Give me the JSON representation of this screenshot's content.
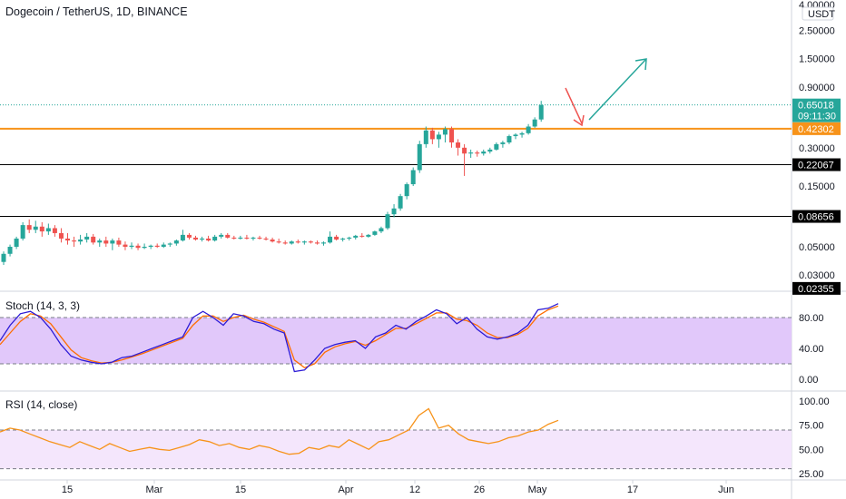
{
  "header": {
    "symbol_title": "Dogecoin / TetherUS, 1D, BINANCE",
    "currency_label": "USDT"
  },
  "colors": {
    "up": "#26a69a",
    "down": "#ef5350",
    "support_orange": "#f7931a",
    "support_black": "#000000",
    "stoch_k": "#2d1bd6",
    "stoch_d": "#ff6d00",
    "rsi": "#f7931a",
    "stoch_band": "#e1c8fa",
    "rsi_band": "#f4e6fc",
    "arrow_red": "#ef5350",
    "arrow_green": "#26a69a"
  },
  "price_axis": {
    "scale": "log",
    "ticks": [
      "4.00000",
      "2.50000",
      "1.50000",
      "0.90000",
      "0.30000",
      "0.15000",
      "0.05000",
      "0.03000"
    ]
  },
  "price_badges": [
    {
      "text": "0.65018",
      "sub": "09:11:30",
      "kind": "last"
    },
    {
      "text": "0.42302",
      "kind": "orange"
    },
    {
      "text": "0.22067",
      "kind": "black"
    },
    {
      "text": "0.08656",
      "kind": "black"
    },
    {
      "text": "0.02355",
      "kind": "black"
    }
  ],
  "time_axis": {
    "labels": [
      "15",
      "Mar",
      "15",
      "Apr",
      "12",
      "26",
      "May",
      "17",
      "Jun"
    ]
  },
  "stoch": {
    "label": "Stoch (14, 3, 3)",
    "ticks": [
      "80.00",
      "40.00",
      "0.00"
    ]
  },
  "rsi": {
    "label": "RSI (14, close)",
    "ticks": [
      "100.00",
      "75.00",
      "50.00",
      "25.00"
    ]
  },
  "chart_data": {
    "type": "candlestick",
    "title": "Dogecoin / TetherUS, 1D, BINANCE",
    "y_scale": "log",
    "ylim": [
      0.02355,
      4.0
    ],
    "horizontal_levels": [
      0.42302,
      0.22067,
      0.08656
    ],
    "last_price": 0.65018,
    "ohlc_approx": [
      [
        0.038,
        0.046,
        0.036,
        0.044
      ],
      [
        0.044,
        0.052,
        0.042,
        0.05
      ],
      [
        0.05,
        0.06,
        0.048,
        0.058
      ],
      [
        0.058,
        0.078,
        0.056,
        0.074
      ],
      [
        0.074,
        0.082,
        0.064,
        0.068
      ],
      [
        0.068,
        0.08,
        0.064,
        0.072
      ],
      [
        0.072,
        0.078,
        0.06,
        0.066
      ],
      [
        0.066,
        0.076,
        0.062,
        0.07
      ],
      [
        0.07,
        0.074,
        0.06,
        0.064
      ],
      [
        0.064,
        0.07,
        0.054,
        0.058
      ],
      [
        0.058,
        0.064,
        0.052,
        0.056
      ],
      [
        0.056,
        0.06,
        0.05,
        0.055
      ],
      [
        0.055,
        0.062,
        0.052,
        0.057
      ],
      [
        0.057,
        0.064,
        0.054,
        0.06
      ],
      [
        0.06,
        0.063,
        0.052,
        0.054
      ],
      [
        0.054,
        0.058,
        0.05,
        0.056
      ],
      [
        0.056,
        0.06,
        0.05,
        0.053
      ],
      [
        0.053,
        0.058,
        0.047,
        0.056
      ],
      [
        0.056,
        0.059,
        0.05,
        0.052
      ],
      [
        0.052,
        0.055,
        0.047,
        0.05
      ],
      [
        0.05,
        0.054,
        0.048,
        0.051
      ],
      [
        0.051,
        0.053,
        0.047,
        0.049
      ],
      [
        0.049,
        0.053,
        0.048,
        0.05
      ],
      [
        0.05,
        0.052,
        0.048,
        0.051
      ],
      [
        0.051,
        0.053,
        0.049,
        0.05
      ],
      [
        0.05,
        0.054,
        0.049,
        0.052
      ],
      [
        0.052,
        0.054,
        0.05,
        0.053
      ],
      [
        0.053,
        0.057,
        0.051,
        0.056
      ],
      [
        0.056,
        0.068,
        0.055,
        0.062
      ],
      [
        0.062,
        0.064,
        0.057,
        0.059
      ],
      [
        0.059,
        0.061,
        0.056,
        0.057
      ],
      [
        0.057,
        0.06,
        0.055,
        0.058
      ],
      [
        0.058,
        0.061,
        0.055,
        0.056
      ],
      [
        0.056,
        0.062,
        0.055,
        0.06
      ],
      [
        0.06,
        0.064,
        0.058,
        0.062
      ],
      [
        0.062,
        0.064,
        0.058,
        0.059
      ],
      [
        0.059,
        0.061,
        0.057,
        0.058
      ],
      [
        0.058,
        0.061,
        0.057,
        0.059
      ],
      [
        0.059,
        0.062,
        0.057,
        0.058
      ],
      [
        0.058,
        0.06,
        0.056,
        0.059
      ],
      [
        0.059,
        0.061,
        0.057,
        0.058
      ],
      [
        0.058,
        0.06,
        0.056,
        0.057
      ],
      [
        0.057,
        0.059,
        0.054,
        0.055
      ],
      [
        0.055,
        0.058,
        0.053,
        0.054
      ],
      [
        0.054,
        0.056,
        0.052,
        0.053
      ],
      [
        0.053,
        0.056,
        0.052,
        0.055
      ],
      [
        0.055,
        0.057,
        0.053,
        0.054
      ],
      [
        0.054,
        0.056,
        0.052,
        0.055
      ],
      [
        0.055,
        0.056,
        0.053,
        0.054
      ],
      [
        0.054,
        0.056,
        0.052,
        0.053
      ],
      [
        0.053,
        0.055,
        0.051,
        0.054
      ],
      [
        0.054,
        0.066,
        0.053,
        0.06
      ],
      [
        0.06,
        0.062,
        0.056,
        0.057
      ],
      [
        0.057,
        0.059,
        0.055,
        0.058
      ],
      [
        0.058,
        0.06,
        0.056,
        0.059
      ],
      [
        0.059,
        0.062,
        0.057,
        0.061
      ],
      [
        0.061,
        0.064,
        0.059,
        0.06
      ],
      [
        0.06,
        0.063,
        0.059,
        0.062
      ],
      [
        0.062,
        0.067,
        0.061,
        0.066
      ],
      [
        0.066,
        0.072,
        0.064,
        0.07
      ],
      [
        0.07,
        0.094,
        0.068,
        0.09
      ],
      [
        0.09,
        0.108,
        0.085,
        0.1
      ],
      [
        0.1,
        0.13,
        0.096,
        0.125
      ],
      [
        0.125,
        0.16,
        0.118,
        0.155
      ],
      [
        0.155,
        0.21,
        0.15,
        0.2
      ],
      [
        0.2,
        0.34,
        0.19,
        0.32
      ],
      [
        0.32,
        0.44,
        0.3,
        0.41
      ],
      [
        0.41,
        0.43,
        0.32,
        0.35
      ],
      [
        0.35,
        0.4,
        0.3,
        0.38
      ],
      [
        0.38,
        0.44,
        0.33,
        0.42
      ],
      [
        0.42,
        0.44,
        0.3,
        0.33
      ],
      [
        0.33,
        0.35,
        0.26,
        0.3
      ],
      [
        0.3,
        0.32,
        0.18,
        0.27
      ],
      [
        0.27,
        0.29,
        0.25,
        0.275
      ],
      [
        0.275,
        0.285,
        0.255,
        0.27
      ],
      [
        0.27,
        0.29,
        0.26,
        0.28
      ],
      [
        0.28,
        0.3,
        0.27,
        0.29
      ],
      [
        0.29,
        0.33,
        0.285,
        0.32
      ],
      [
        0.32,
        0.34,
        0.3,
        0.33
      ],
      [
        0.33,
        0.38,
        0.32,
        0.37
      ],
      [
        0.37,
        0.39,
        0.35,
        0.38
      ],
      [
        0.38,
        0.4,
        0.36,
        0.39
      ],
      [
        0.39,
        0.46,
        0.38,
        0.44
      ],
      [
        0.44,
        0.52,
        0.43,
        0.5
      ],
      [
        0.5,
        0.7,
        0.48,
        0.65
      ]
    ]
  }
}
